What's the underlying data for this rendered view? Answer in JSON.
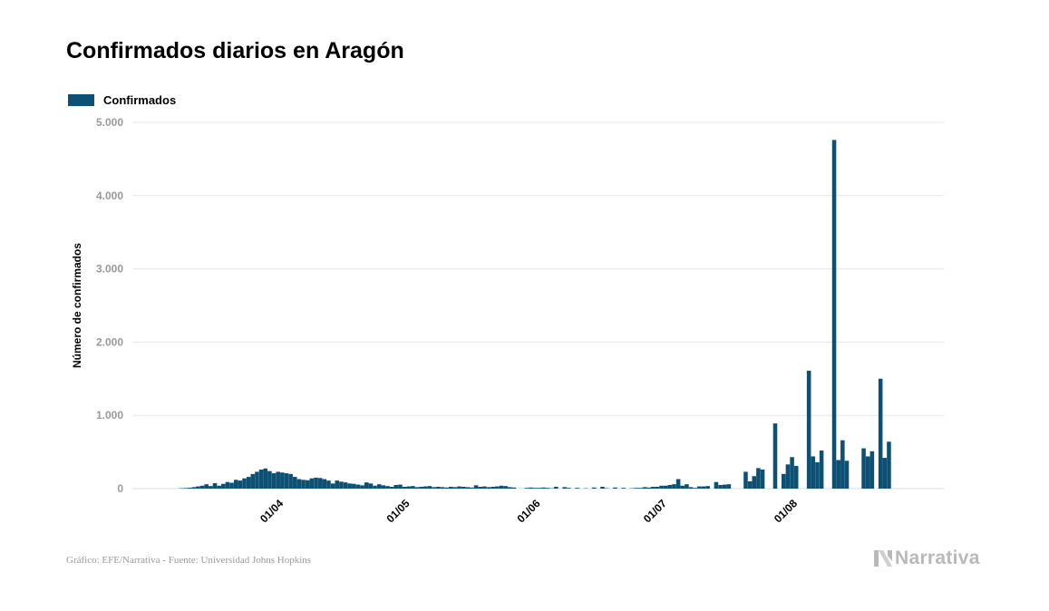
{
  "title": "Confirmados diarios en Aragón",
  "legend_label": "Confirmados",
  "footer": "Gráfico: EFE/Narrativa - Fuente: Universidad Johns Hopkins",
  "brand": "Narrativa",
  "colors": {
    "bar": "#0d5073",
    "grid": "#e6e6e6",
    "tick": "#999999",
    "text": "#000000"
  },
  "chart_data": {
    "type": "bar",
    "title": "Confirmados diarios en Aragón",
    "xlabel": "",
    "ylabel": "Número de confirmados",
    "ylim": [
      0,
      5000
    ],
    "yticks": [
      0,
      1000,
      2000,
      3000,
      4000,
      5000
    ],
    "ytick_labels": [
      "0",
      "1.000",
      "2.000",
      "3.000",
      "4.000",
      "5.000"
    ],
    "xtick_labels": [
      "01/04",
      "01/05",
      "01/06",
      "01/07",
      "01/08"
    ],
    "xtick_dates": [
      "2020-04-01",
      "2020-05-01",
      "2020-06-01",
      "2020-07-01",
      "2020-08-01"
    ],
    "grid": true,
    "legend_position": "top-left",
    "series": [
      {
        "name": "Confirmados",
        "points": [
          [
            "2020-03-08",
            5
          ],
          [
            "2020-03-09",
            8
          ],
          [
            "2020-03-10",
            12
          ],
          [
            "2020-03-11",
            20
          ],
          [
            "2020-03-12",
            30
          ],
          [
            "2020-03-13",
            40
          ],
          [
            "2020-03-14",
            60
          ],
          [
            "2020-03-15",
            35
          ],
          [
            "2020-03-16",
            75
          ],
          [
            "2020-03-17",
            40
          ],
          [
            "2020-03-18",
            65
          ],
          [
            "2020-03-19",
            90
          ],
          [
            "2020-03-20",
            80
          ],
          [
            "2020-03-21",
            120
          ],
          [
            "2020-03-22",
            110
          ],
          [
            "2020-03-23",
            140
          ],
          [
            "2020-03-24",
            160
          ],
          [
            "2020-03-25",
            200
          ],
          [
            "2020-03-26",
            230
          ],
          [
            "2020-03-27",
            260
          ],
          [
            "2020-03-28",
            275
          ],
          [
            "2020-03-29",
            240
          ],
          [
            "2020-03-30",
            210
          ],
          [
            "2020-03-31",
            230
          ],
          [
            "2020-04-01",
            220
          ],
          [
            "2020-04-02",
            210
          ],
          [
            "2020-04-03",
            200
          ],
          [
            "2020-04-04",
            160
          ],
          [
            "2020-04-05",
            130
          ],
          [
            "2020-04-06",
            120
          ],
          [
            "2020-04-07",
            115
          ],
          [
            "2020-04-08",
            140
          ],
          [
            "2020-04-09",
            150
          ],
          [
            "2020-04-10",
            145
          ],
          [
            "2020-04-11",
            130
          ],
          [
            "2020-04-12",
            110
          ],
          [
            "2020-04-13",
            70
          ],
          [
            "2020-04-14",
            110
          ],
          [
            "2020-04-15",
            95
          ],
          [
            "2020-04-16",
            85
          ],
          [
            "2020-04-17",
            70
          ],
          [
            "2020-04-18",
            65
          ],
          [
            "2020-04-19",
            55
          ],
          [
            "2020-04-20",
            45
          ],
          [
            "2020-04-21",
            85
          ],
          [
            "2020-04-22",
            70
          ],
          [
            "2020-04-23",
            40
          ],
          [
            "2020-04-24",
            60
          ],
          [
            "2020-04-25",
            45
          ],
          [
            "2020-04-26",
            35
          ],
          [
            "2020-04-27",
            25
          ],
          [
            "2020-04-28",
            50
          ],
          [
            "2020-04-29",
            55
          ],
          [
            "2020-04-30",
            25
          ],
          [
            "2020-05-01",
            30
          ],
          [
            "2020-05-02",
            35
          ],
          [
            "2020-05-03",
            20
          ],
          [
            "2020-05-04",
            25
          ],
          [
            "2020-05-05",
            30
          ],
          [
            "2020-05-06",
            35
          ],
          [
            "2020-05-07",
            20
          ],
          [
            "2020-05-08",
            25
          ],
          [
            "2020-05-09",
            20
          ],
          [
            "2020-05-10",
            15
          ],
          [
            "2020-05-11",
            25
          ],
          [
            "2020-05-12",
            20
          ],
          [
            "2020-05-13",
            30
          ],
          [
            "2020-05-14",
            25
          ],
          [
            "2020-05-15",
            20
          ],
          [
            "2020-05-16",
            15
          ],
          [
            "2020-05-17",
            45
          ],
          [
            "2020-05-18",
            25
          ],
          [
            "2020-05-19",
            30
          ],
          [
            "2020-05-20",
            20
          ],
          [
            "2020-05-21",
            25
          ],
          [
            "2020-05-22",
            30
          ],
          [
            "2020-05-23",
            40
          ],
          [
            "2020-05-24",
            35
          ],
          [
            "2020-05-25",
            20
          ],
          [
            "2020-05-26",
            15
          ],
          [
            "2020-05-29",
            10
          ],
          [
            "2020-05-30",
            15
          ],
          [
            "2020-05-31",
            10
          ],
          [
            "2020-06-01",
            10
          ],
          [
            "2020-06-02",
            15
          ],
          [
            "2020-06-03",
            10
          ],
          [
            "2020-06-04",
            5
          ],
          [
            "2020-06-05",
            25
          ],
          [
            "2020-06-07",
            20
          ],
          [
            "2020-06-08",
            10
          ],
          [
            "2020-06-10",
            10
          ],
          [
            "2020-06-12",
            5
          ],
          [
            "2020-06-14",
            15
          ],
          [
            "2020-06-16",
            25
          ],
          [
            "2020-06-17",
            5
          ],
          [
            "2020-06-19",
            15
          ],
          [
            "2020-06-21",
            10
          ],
          [
            "2020-06-23",
            5
          ],
          [
            "2020-06-24",
            10
          ],
          [
            "2020-06-25",
            10
          ],
          [
            "2020-06-26",
            20
          ],
          [
            "2020-06-27",
            15
          ],
          [
            "2020-06-28",
            25
          ],
          [
            "2020-06-29",
            25
          ],
          [
            "2020-06-30",
            40
          ],
          [
            "2020-07-01",
            40
          ],
          [
            "2020-07-02",
            50
          ],
          [
            "2020-07-03",
            60
          ],
          [
            "2020-07-04",
            130
          ],
          [
            "2020-07-05",
            40
          ],
          [
            "2020-07-06",
            60
          ],
          [
            "2020-07-07",
            20
          ],
          [
            "2020-07-08",
            10
          ],
          [
            "2020-07-09",
            30
          ],
          [
            "2020-07-10",
            30
          ],
          [
            "2020-07-11",
            35
          ],
          [
            "2020-07-13",
            90
          ],
          [
            "2020-07-14",
            50
          ],
          [
            "2020-07-15",
            55
          ],
          [
            "2020-07-16",
            60
          ],
          [
            "2020-07-20",
            230
          ],
          [
            "2020-07-21",
            100
          ],
          [
            "2020-07-22",
            170
          ],
          [
            "2020-07-23",
            280
          ],
          [
            "2020-07-24",
            260
          ],
          [
            "2020-07-27",
            890
          ],
          [
            "2020-07-29",
            200
          ],
          [
            "2020-07-30",
            330
          ],
          [
            "2020-07-31",
            430
          ],
          [
            "2020-08-01",
            310
          ],
          [
            "2020-08-04",
            1610
          ],
          [
            "2020-08-05",
            440
          ],
          [
            "2020-08-06",
            360
          ],
          [
            "2020-08-07",
            520
          ],
          [
            "2020-08-10",
            4760
          ],
          [
            "2020-08-11",
            390
          ],
          [
            "2020-08-12",
            660
          ],
          [
            "2020-08-13",
            380
          ],
          [
            "2020-08-17",
            550
          ],
          [
            "2020-08-18",
            440
          ],
          [
            "2020-08-19",
            510
          ],
          [
            "2020-08-21",
            1500
          ],
          [
            "2020-08-22",
            420
          ],
          [
            "2020-08-23",
            640
          ]
        ]
      }
    ]
  }
}
